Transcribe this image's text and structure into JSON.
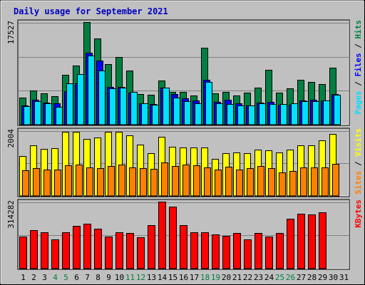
{
  "chart_data": {
    "type": "bar",
    "title": "Daily usage for September 2021",
    "x": [
      1,
      2,
      3,
      4,
      5,
      6,
      7,
      8,
      9,
      10,
      11,
      12,
      13,
      14,
      15,
      16,
      17,
      18,
      19,
      20,
      21,
      22,
      23,
      24,
      25,
      26,
      27,
      28,
      29,
      30,
      31
    ],
    "weekend_days": [
      4,
      5,
      11,
      12,
      18,
      19,
      25,
      26
    ],
    "panels": [
      {
        "id": "hits-files-pages",
        "ymax_label": "17527",
        "ymax": 17527,
        "side_label_parts": [
          {
            "text": "Pages",
            "color": "#00e0ff"
          },
          {
            "text": " / ",
            "color": "#000000"
          },
          {
            "text": "Files",
            "color": "#0000ff"
          },
          {
            "text": " / ",
            "color": "#000000"
          },
          {
            "text": "Hits",
            "color": "#008040"
          }
        ],
        "series": [
          {
            "name": "Hits",
            "color": "#008040",
            "values": [
              4600,
              5800,
              5300,
              4900,
              8500,
              10100,
              17500,
              14700,
              10400,
              11600,
              9200,
              5200,
              5100,
              7600,
              5600,
              5600,
              5000,
              13200,
              5400,
              5600,
              5000,
              5500,
              6300,
              9400,
              5500,
              6200,
              7700,
              7300,
              6900,
              9700,
              null
            ]
          },
          {
            "name": "Files",
            "color": "#0000ff",
            "values": [
              3300,
              4200,
              3800,
              3700,
              5700,
              7100,
              12300,
              11000,
              6400,
              6500,
              5500,
              3600,
              3500,
              6300,
              5200,
              4500,
              4100,
              7700,
              3900,
              4200,
              3600,
              3300,
              3800,
              3900,
              3400,
              3400,
              4100,
              4300,
              4100,
              5200,
              null
            ]
          },
          {
            "name": "Pages",
            "color": "#00e0ff",
            "values": [
              3200,
              4000,
              3700,
              3100,
              7000,
              8700,
              11800,
              9300,
              6200,
              6300,
              5600,
              3700,
              3400,
              6300,
              4600,
              4000,
              3700,
              7300,
              3700,
              3500,
              3300,
              3300,
              3700,
              3500,
              3500,
              3600,
              4000,
              4000,
              4100,
              5100,
              null
            ]
          }
        ]
      },
      {
        "id": "visits-sites",
        "ymax_label": "2004",
        "ymax": 2004,
        "side_label_parts": [
          {
            "text": "Sites",
            "color": "#ff8000"
          },
          {
            "text": " / ",
            "color": "#000000"
          },
          {
            "text": "Visits",
            "color": "#ffff00"
          }
        ],
        "series": [
          {
            "name": "Visits",
            "color": "#ffff00",
            "values": [
              1230,
              1550,
              1440,
              1460,
              1950,
              1960,
              1750,
              1780,
              1970,
              1950,
              1850,
              1560,
              1300,
              1810,
              1500,
              1490,
              1490,
              1480,
              1140,
              1300,
              1330,
              1300,
              1410,
              1400,
              1320,
              1420,
              1550,
              1540,
              1690,
              1890,
              null
            ]
          },
          {
            "name": "Sites",
            "color": "#ff8000",
            "values": [
              780,
              850,
              810,
              800,
              930,
              950,
              880,
              860,
              920,
              950,
              880,
              860,
              830,
              1020,
              920,
              950,
              930,
              870,
              810,
              890,
              810,
              850,
              910,
              850,
              710,
              770,
              870,
              870,
              880,
              990,
              null
            ]
          }
        ]
      },
      {
        "id": "kbytes",
        "ymax_label": "314282",
        "ymax": 314282,
        "side_label_parts": [
          {
            "text": "KBytes",
            "color": "#ff0000"
          }
        ],
        "series": [
          {
            "name": "KBytes",
            "color": "#ff0000",
            "values": [
              150000,
              180000,
              172000,
              136000,
              170000,
              202000,
              210000,
              188000,
              152000,
              170000,
              168000,
              146000,
              203000,
              315000,
              291000,
              205000,
              169000,
              171000,
              162000,
              155000,
              166000,
              138000,
              166000,
              152000,
              167000,
              234000,
              259000,
              253000,
              264000,
              null,
              null
            ]
          }
        ]
      }
    ]
  }
}
